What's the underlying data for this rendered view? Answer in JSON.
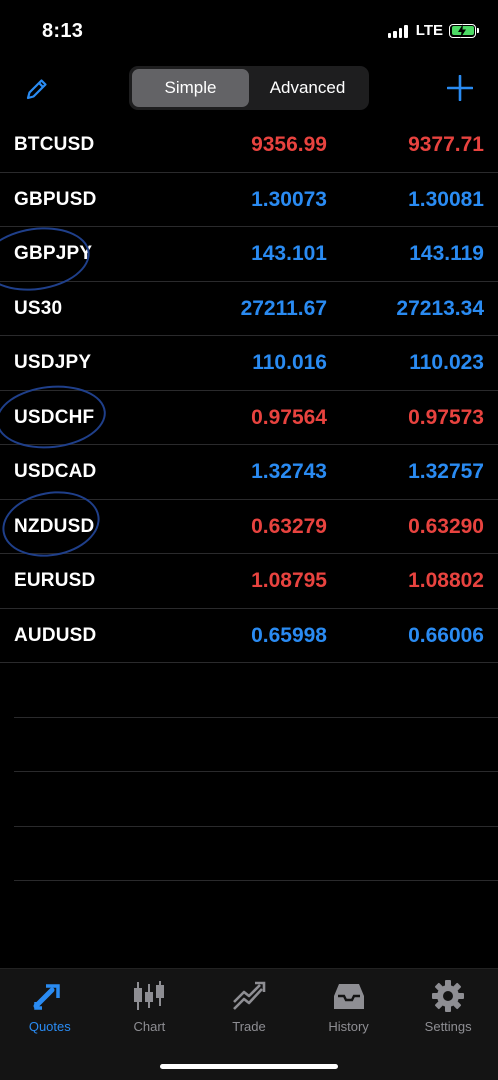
{
  "status": {
    "time": "8:13",
    "network": "LTE",
    "battery_color": "#4cd964"
  },
  "nav": {
    "edit_icon": "pencil-icon",
    "segments": [
      {
        "label": "Simple",
        "active": true
      },
      {
        "label": "Advanced",
        "active": false
      }
    ],
    "add_icon": "plus-icon"
  },
  "quotes": [
    {
      "symbol": "BTCUSD",
      "bid": "9356.99",
      "ask": "9377.71",
      "color": "red"
    },
    {
      "symbol": "GBPUSD",
      "bid": "1.30073",
      "ask": "1.30081",
      "color": "blue"
    },
    {
      "symbol": "GBPJPY",
      "bid": "143.101",
      "ask": "143.119",
      "color": "blue"
    },
    {
      "symbol": "US30",
      "bid": "27211.67",
      "ask": "27213.34",
      "color": "blue"
    },
    {
      "symbol": "USDJPY",
      "bid": "110.016",
      "ask": "110.023",
      "color": "blue"
    },
    {
      "symbol": "USDCHF",
      "bid": "0.97564",
      "ask": "0.97573",
      "color": "red"
    },
    {
      "symbol": "USDCAD",
      "bid": "1.32743",
      "ask": "1.32757",
      "color": "blue"
    },
    {
      "symbol": "NZDUSD",
      "bid": "0.63279",
      "ask": "0.63290",
      "color": "red"
    },
    {
      "symbol": "EURUSD",
      "bid": "1.08795",
      "ask": "1.08802",
      "color": "red"
    },
    {
      "symbol": "AUDUSD",
      "bid": "0.65998",
      "ask": "0.66006",
      "color": "blue"
    }
  ],
  "colors": {
    "down": "#e8433f",
    "up": "#2a8bf2",
    "annotation": "#1f3f8a"
  },
  "tabs": [
    {
      "label": "Quotes",
      "icon": "quotes-arrows-icon",
      "active": true
    },
    {
      "label": "Chart",
      "icon": "candlestick-chart-icon",
      "active": false
    },
    {
      "label": "Trade",
      "icon": "trade-trend-icon",
      "active": false
    },
    {
      "label": "History",
      "icon": "inbox-history-icon",
      "active": false
    },
    {
      "label": "Settings",
      "icon": "gear-icon",
      "active": false
    }
  ]
}
